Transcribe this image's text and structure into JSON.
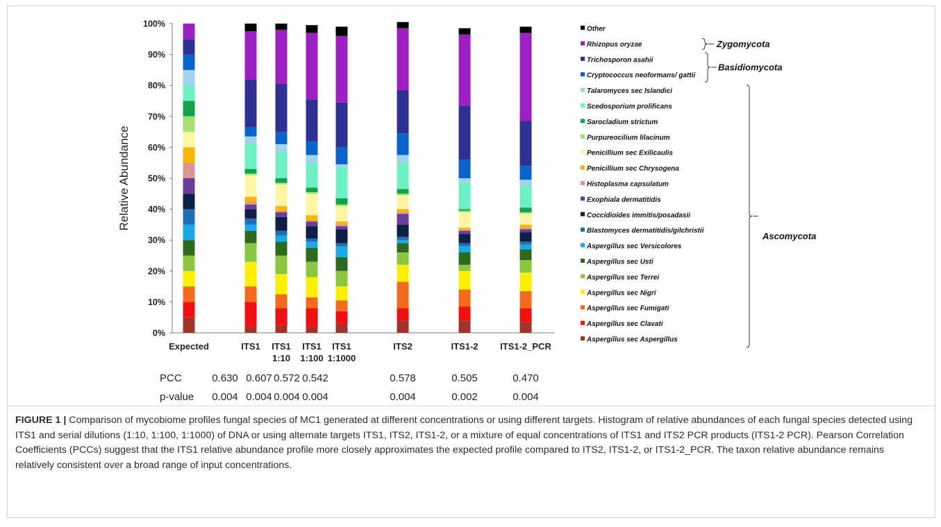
{
  "figure": {
    "caption_label": "FIGURE 1 |",
    "caption_text": " Comparison of mycobiome profiles fungal species of MC1 generated at different concentrations or using different targets. Histogram of relative abundances of each fungal species detected using ITS1 and serial dilutions (1:10, 1:100, 1:1000) of DNA or using alternate targets ITS1, ITS2, ITS1-2, or a mixture of equal concentrations of ITS1 and ITS2 PCR products (ITS1-2 PCR). Pearson Correlation Coefficients (PCCs) suggest that the ITS1 relative abundance profile more closely approximates the expected profile compared to ITS2, ITS1-2, or ITS1-2_PCR. The taxon relative abundance remains relatively consistent over a broad range of input concentrations."
  },
  "chart_data": {
    "type": "bar",
    "stacked": true,
    "title": "",
    "xlabel": "",
    "ylabel": "Relative Abundance",
    "ylim": [
      0,
      100
    ],
    "yticks": [
      "0%",
      "10%",
      "20%",
      "30%",
      "40%",
      "50%",
      "60%",
      "70%",
      "80%",
      "90%",
      "100%"
    ],
    "grid": false,
    "legend_position": "right",
    "categories": [
      [
        "Expected"
      ],
      [
        "ITS1"
      ],
      [
        "ITS1",
        "1:10"
      ],
      [
        "ITS1",
        "1:100"
      ],
      [
        "ITS1",
        "1:1000"
      ],
      [
        "ITS2"
      ],
      [
        "ITS1-2"
      ],
      [
        "ITS1-2_PCR"
      ]
    ],
    "series": [
      {
        "name": "Aspergillus sec Aspergillus",
        "color": "#a0342c",
        "values": [
          5,
          2,
          2.5,
          2,
          3,
          4,
          4,
          3.5
        ]
      },
      {
        "name": "Aspergillus sec Clavati",
        "color": "#ee1111",
        "values": [
          5,
          8,
          5.5,
          6,
          4,
          4,
          4.5,
          4.5
        ]
      },
      {
        "name": "Aspergillus sec Fumigati",
        "color": "#f46a1c",
        "values": [
          5,
          5,
          4.5,
          3.5,
          3.5,
          8.5,
          5.5,
          5.5
        ]
      },
      {
        "name": "Aspergillus sec Nigri",
        "color": "#ffee00",
        "values": [
          5,
          8,
          6.5,
          6.5,
          4.5,
          5.5,
          6,
          6
        ]
      },
      {
        "name": "Aspergillus sec Terrei",
        "color": "#8cc63f",
        "values": [
          5,
          6,
          6,
          5,
          5,
          4,
          2,
          4
        ]
      },
      {
        "name": "Aspergillus sec Usti",
        "color": "#2d6a1e",
        "values": [
          5,
          4,
          4.5,
          4.5,
          4.5,
          3,
          4,
          3.5
        ]
      },
      {
        "name": "Aspergillus sec Versicolores",
        "color": "#19a9e6",
        "values": [
          5,
          2,
          2,
          2,
          3.5,
          1,
          2,
          1.5
        ]
      },
      {
        "name": "Blastomyces dermatitidis/gilchristii",
        "color": "#1f6fb8",
        "values": [
          5,
          2,
          1.5,
          1,
          1,
          1,
          1,
          1
        ]
      },
      {
        "name": "Coccidioides immitis/posadasii",
        "color": "#0c1f45",
        "values": [
          5,
          3,
          4.5,
          4,
          4.5,
          4,
          3,
          3
        ]
      },
      {
        "name": "Exophiala dermatitidis",
        "color": "#6a3d9a",
        "values": [
          5,
          1.5,
          1.5,
          1.5,
          1,
          3.5,
          1,
          1
        ]
      },
      {
        "name": "Histoplasma capsulatum",
        "color": "#d99694",
        "values": [
          5,
          1,
          0.5,
          0.5,
          0.5,
          0.5,
          0.5,
          0.5
        ]
      },
      {
        "name": "Penicillium  sec Chrysogena",
        "color": "#f8b400",
        "values": [
          5,
          1.5,
          1.5,
          1.5,
          1,
          1,
          0.5,
          1
        ]
      },
      {
        "name": "Penicillium sec Exilicaulis",
        "color": "#fff5a5",
        "values": [
          5,
          7,
          7,
          7,
          5,
          4.5,
          5,
          3.5
        ]
      },
      {
        "name": "Purpureocilium lilacinum",
        "color": "#a6e06e",
        "values": [
          5,
          0.5,
          0.5,
          0.5,
          0.5,
          0.5,
          0.5,
          0.5
        ]
      },
      {
        "name": "Sarocladium strictum",
        "color": "#15a34a",
        "values": [
          5,
          1.5,
          1.5,
          1.5,
          2,
          1.5,
          0.5,
          1.5
        ]
      },
      {
        "name": "Scedosporium prolificans",
        "color": "#6ef0c4",
        "values": [
          5,
          8,
          8.5,
          8,
          10,
          8.5,
          8.5,
          7
        ]
      },
      {
        "name": "Talaromyces sec Islandici",
        "color": "#9fd3e8",
        "values": [
          5,
          2.5,
          2.5,
          2.5,
          1,
          2.5,
          1.5,
          2
        ]
      },
      {
        "name": "Cryptococcus neoformans/ gattii",
        "color": "#0a63c9",
        "values": [
          5,
          3,
          4,
          4.5,
          5.5,
          7,
          6,
          4.5
        ]
      },
      {
        "name": "Trichosporon asahii",
        "color": "#2e3192",
        "values": [
          5,
          15.5,
          15.5,
          13.5,
          14.5,
          14,
          17.5,
          14.5
        ]
      },
      {
        "name": "Rhizopus oryzae",
        "color": "#9b1fc1",
        "values": [
          5,
          15.5,
          17.5,
          21.5,
          21.5,
          20,
          23,
          28.5
        ]
      },
      {
        "name": "Other",
        "color": "#000000",
        "values": [
          0,
          2.5,
          2,
          2.5,
          3,
          2,
          2,
          2
        ]
      }
    ],
    "legend_groups": [
      {
        "name": "Zygomycota",
        "members": [
          "Rhizopus oryzae"
        ]
      },
      {
        "name": "Basidiomycota",
        "members": [
          "Trichosporon asahii",
          "Cryptococcus neoformans/ gattii"
        ]
      },
      {
        "name": "Ascomycota",
        "members": [
          "Talaromyces sec Islandici",
          "Aspergillus sec Aspergillus"
        ]
      }
    ],
    "stats": {
      "pcc_label": "PCC",
      "pvalue_label": "p-value",
      "pcc": [
        "0.630",
        "0.607",
        "0.572",
        "0.542",
        "0.578",
        "0.505",
        "0.470"
      ],
      "pvalue": [
        "0.004",
        "0.004",
        "0.004",
        "0.004",
        "0.004",
        "0.002",
        "0.004"
      ]
    }
  }
}
